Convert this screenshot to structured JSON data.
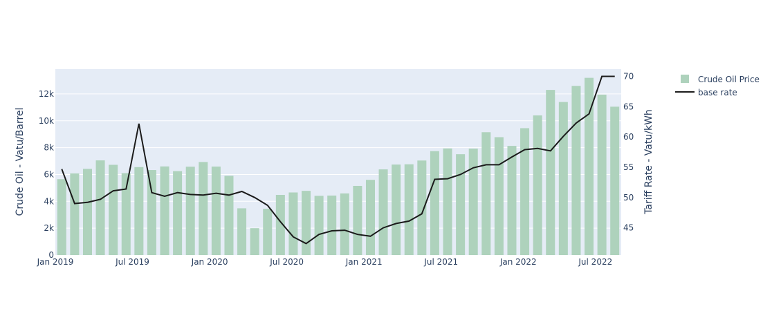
{
  "chart_data": {
    "type": "bar",
    "x": [
      "2019-01",
      "2019-02",
      "2019-03",
      "2019-04",
      "2019-05",
      "2019-06",
      "2019-07",
      "2019-08",
      "2019-09",
      "2019-10",
      "2019-11",
      "2019-12",
      "2020-01",
      "2020-02",
      "2020-03",
      "2020-04",
      "2020-05",
      "2020-06",
      "2020-07",
      "2020-08",
      "2020-09",
      "2020-10",
      "2020-11",
      "2020-12",
      "2021-01",
      "2021-02",
      "2021-03",
      "2021-04",
      "2021-05",
      "2021-06",
      "2021-07",
      "2021-08",
      "2021-09",
      "2021-10",
      "2021-11",
      "2021-12",
      "2022-01",
      "2022-02",
      "2022-03",
      "2022-04",
      "2022-05",
      "2022-06",
      "2022-07",
      "2022-08"
    ],
    "series": [
      {
        "name": "Crude Oil Price",
        "type": "bar",
        "axis": "left",
        "color": "#aed2bc",
        "values": [
          5650,
          6080,
          6420,
          7050,
          6720,
          6100,
          6550,
          6330,
          6600,
          6250,
          6580,
          6930,
          6590,
          5900,
          3480,
          2000,
          3450,
          4480,
          4660,
          4780,
          4410,
          4430,
          4590,
          5150,
          5600,
          6380,
          6740,
          6760,
          7040,
          7740,
          7940,
          7510,
          7930,
          9150,
          8780,
          8130,
          9450,
          10400,
          12300,
          11400,
          12600,
          13200,
          11950,
          11050
        ]
      },
      {
        "name": "base rate",
        "type": "line",
        "axis": "right",
        "color": "#1b1b1b",
        "values": [
          54.7,
          49.0,
          49.2,
          49.7,
          51.1,
          51.4,
          62.2,
          50.8,
          50.2,
          50.8,
          50.5,
          50.4,
          50.7,
          50.4,
          51.0,
          50.0,
          48.7,
          46.0,
          43.5,
          42.4,
          43.9,
          44.5,
          44.6,
          43.9,
          43.6,
          45.0,
          45.7,
          46.1,
          47.3,
          53.0,
          53.1,
          53.8,
          54.9,
          55.4,
          55.4,
          56.7,
          57.9,
          58.1,
          57.7,
          60.1,
          62.3,
          63.8,
          70.0,
          70.0
        ]
      }
    ],
    "x_ticks": [
      "Jan 2019",
      "Jul 2019",
      "Jan 2020",
      "Jul 2020",
      "Jan 2021",
      "Jul 2021",
      "Jan 2022",
      "Jul 2022"
    ],
    "x_tick_months": [
      "2019-01",
      "2019-07",
      "2020-01",
      "2020-07",
      "2021-01",
      "2021-07",
      "2022-01",
      "2022-07"
    ],
    "y_left": {
      "label": "Crude Oil - Vatu/Barrel",
      "range": [
        0,
        13850
      ],
      "ticks": [
        0,
        2000,
        4000,
        6000,
        8000,
        10000,
        12000
      ],
      "tick_labels": [
        "0",
        "2k",
        "4k",
        "6k",
        "8k",
        "10k",
        "12k"
      ]
    },
    "y_right": {
      "label": "Tariff Rate - Vatu/kWh",
      "range": [
        40.5,
        71.2
      ],
      "ticks": [
        45,
        50,
        55,
        60,
        65,
        70
      ],
      "tick_labels": [
        "45",
        "50",
        "55",
        "60",
        "65",
        "70"
      ]
    },
    "grid": true,
    "legend": {
      "placement": "top-right",
      "entries": [
        "Crude Oil Price",
        "base rate"
      ]
    },
    "plot_background": "#e5ecf6"
  }
}
